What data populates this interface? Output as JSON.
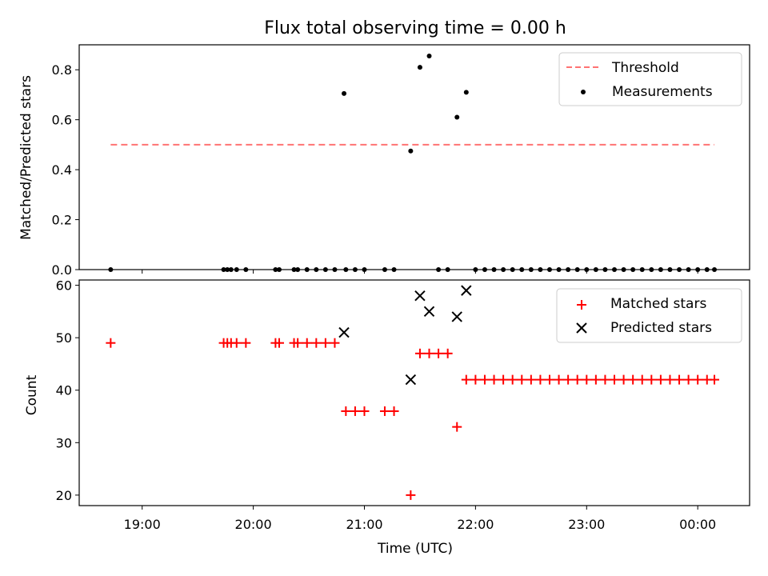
{
  "figure": {
    "title": "Flux total observing time = 0.00 h"
  },
  "chart_data": [
    {
      "type": "scatter",
      "ylabel": "Matched/Predicted stars",
      "xlabel": "",
      "ylim": [
        0,
        0.9
      ],
      "yticks": [
        0.0,
        0.2,
        0.4,
        0.6,
        0.8
      ],
      "ytick_labels": [
        "0.0",
        "0.2",
        "0.4",
        "0.6",
        "0.8"
      ],
      "xlim": [
        "18:26",
        "00:28"
      ],
      "xticks": [
        "19:00",
        "20:00",
        "21:00",
        "22:00",
        "23:00",
        "00:00"
      ],
      "legend": {
        "placement": "top-right",
        "entries": [
          "Threshold",
          "Measurements"
        ]
      },
      "threshold": {
        "name": "Threshold",
        "y": 0.5,
        "x_start": "18:43",
        "x_end": "00:09",
        "color": "#ff7373",
        "style": "dashed"
      },
      "series": [
        {
          "name": "Measurements",
          "color": "#000000",
          "marker": "dot",
          "x": [
            "18:43",
            "19:44",
            "19:46",
            "19:48",
            "19:51",
            "19:56",
            "20:12",
            "20:14",
            "20:22",
            "20:24",
            "20:29",
            "20:34",
            "20:39",
            "20:44",
            "20:49",
            "20:50",
            "20:55",
            "21:00",
            "21:11",
            "21:16",
            "21:25",
            "21:30",
            "21:35",
            "21:40",
            "21:45",
            "21:50",
            "21:55",
            "22:00",
            "22:05",
            "22:10",
            "22:15",
            "22:20",
            "22:25",
            "22:30",
            "22:35",
            "22:40",
            "22:45",
            "22:50",
            "22:55",
            "23:00",
            "23:05",
            "23:10",
            "23:15",
            "23:20",
            "23:25",
            "23:30",
            "23:35",
            "23:40",
            "23:45",
            "23:50",
            "23:55",
            "00:00",
            "00:05",
            "00:09"
          ],
          "y": [
            0,
            0,
            0,
            0,
            0,
            0,
            0,
            0,
            0,
            0,
            0,
            0,
            0,
            0,
            0.705,
            0,
            0,
            0,
            0,
            0,
            0.475,
            0.81,
            0.855,
            0,
            0,
            0.61,
            0.71,
            0,
            0,
            0,
            0,
            0,
            0,
            0,
            0,
            0,
            0,
            0,
            0,
            0,
            0,
            0,
            0,
            0,
            0,
            0,
            0,
            0,
            0,
            0,
            0,
            0,
            0,
            0
          ]
        }
      ]
    },
    {
      "type": "scatter",
      "ylabel": "Count",
      "xlabel": "Time (UTC)",
      "ylim": [
        18,
        61
      ],
      "yticks": [
        20,
        30,
        40,
        50,
        60
      ],
      "ytick_labels": [
        "20",
        "30",
        "40",
        "50",
        "60"
      ],
      "xlim": [
        "18:26",
        "00:28"
      ],
      "xticks": [
        "19:00",
        "20:00",
        "21:00",
        "22:00",
        "23:00",
        "00:00"
      ],
      "xtick_labels": [
        "19:00",
        "20:00",
        "21:00",
        "22:00",
        "23:00",
        "00:00"
      ],
      "legend": {
        "placement": "top-right",
        "entries": [
          "Matched stars",
          "Predicted stars"
        ]
      },
      "series": [
        {
          "name": "Matched stars",
          "color": "#ff0000",
          "marker": "plus",
          "x": [
            "18:43",
            "19:44",
            "19:46",
            "19:48",
            "19:51",
            "19:56",
            "20:12",
            "20:14",
            "20:22",
            "20:24",
            "20:29",
            "20:34",
            "20:39",
            "20:44",
            "20:50",
            "20:55",
            "21:00",
            "21:11",
            "21:16",
            "21:25",
            "21:30",
            "21:35",
            "21:40",
            "21:45",
            "21:50",
            "21:55",
            "22:00",
            "22:05",
            "22:10",
            "22:15",
            "22:20",
            "22:25",
            "22:30",
            "22:35",
            "22:40",
            "22:45",
            "22:50",
            "22:55",
            "23:00",
            "23:05",
            "23:10",
            "23:15",
            "23:20",
            "23:25",
            "23:30",
            "23:35",
            "23:40",
            "23:45",
            "23:50",
            "23:55",
            "00:00",
            "00:05",
            "00:09"
          ],
          "y": [
            49,
            49,
            49,
            49,
            49,
            49,
            49,
            49,
            49,
            49,
            49,
            49,
            49,
            49,
            36,
            36,
            36,
            36,
            36,
            20,
            47,
            47,
            47,
            47,
            33,
            42,
            42,
            42,
            42,
            42,
            42,
            42,
            42,
            42,
            42,
            42,
            42,
            42,
            42,
            42,
            42,
            42,
            42,
            42,
            42,
            42,
            42,
            42,
            42,
            42,
            42,
            42,
            42
          ]
        },
        {
          "name": "Predicted stars",
          "color": "#000000",
          "marker": "x",
          "x": [
            "20:49",
            "21:25",
            "21:30",
            "21:35",
            "21:50",
            "21:55"
          ],
          "y": [
            51,
            42,
            58,
            55,
            54,
            59
          ]
        }
      ]
    }
  ]
}
